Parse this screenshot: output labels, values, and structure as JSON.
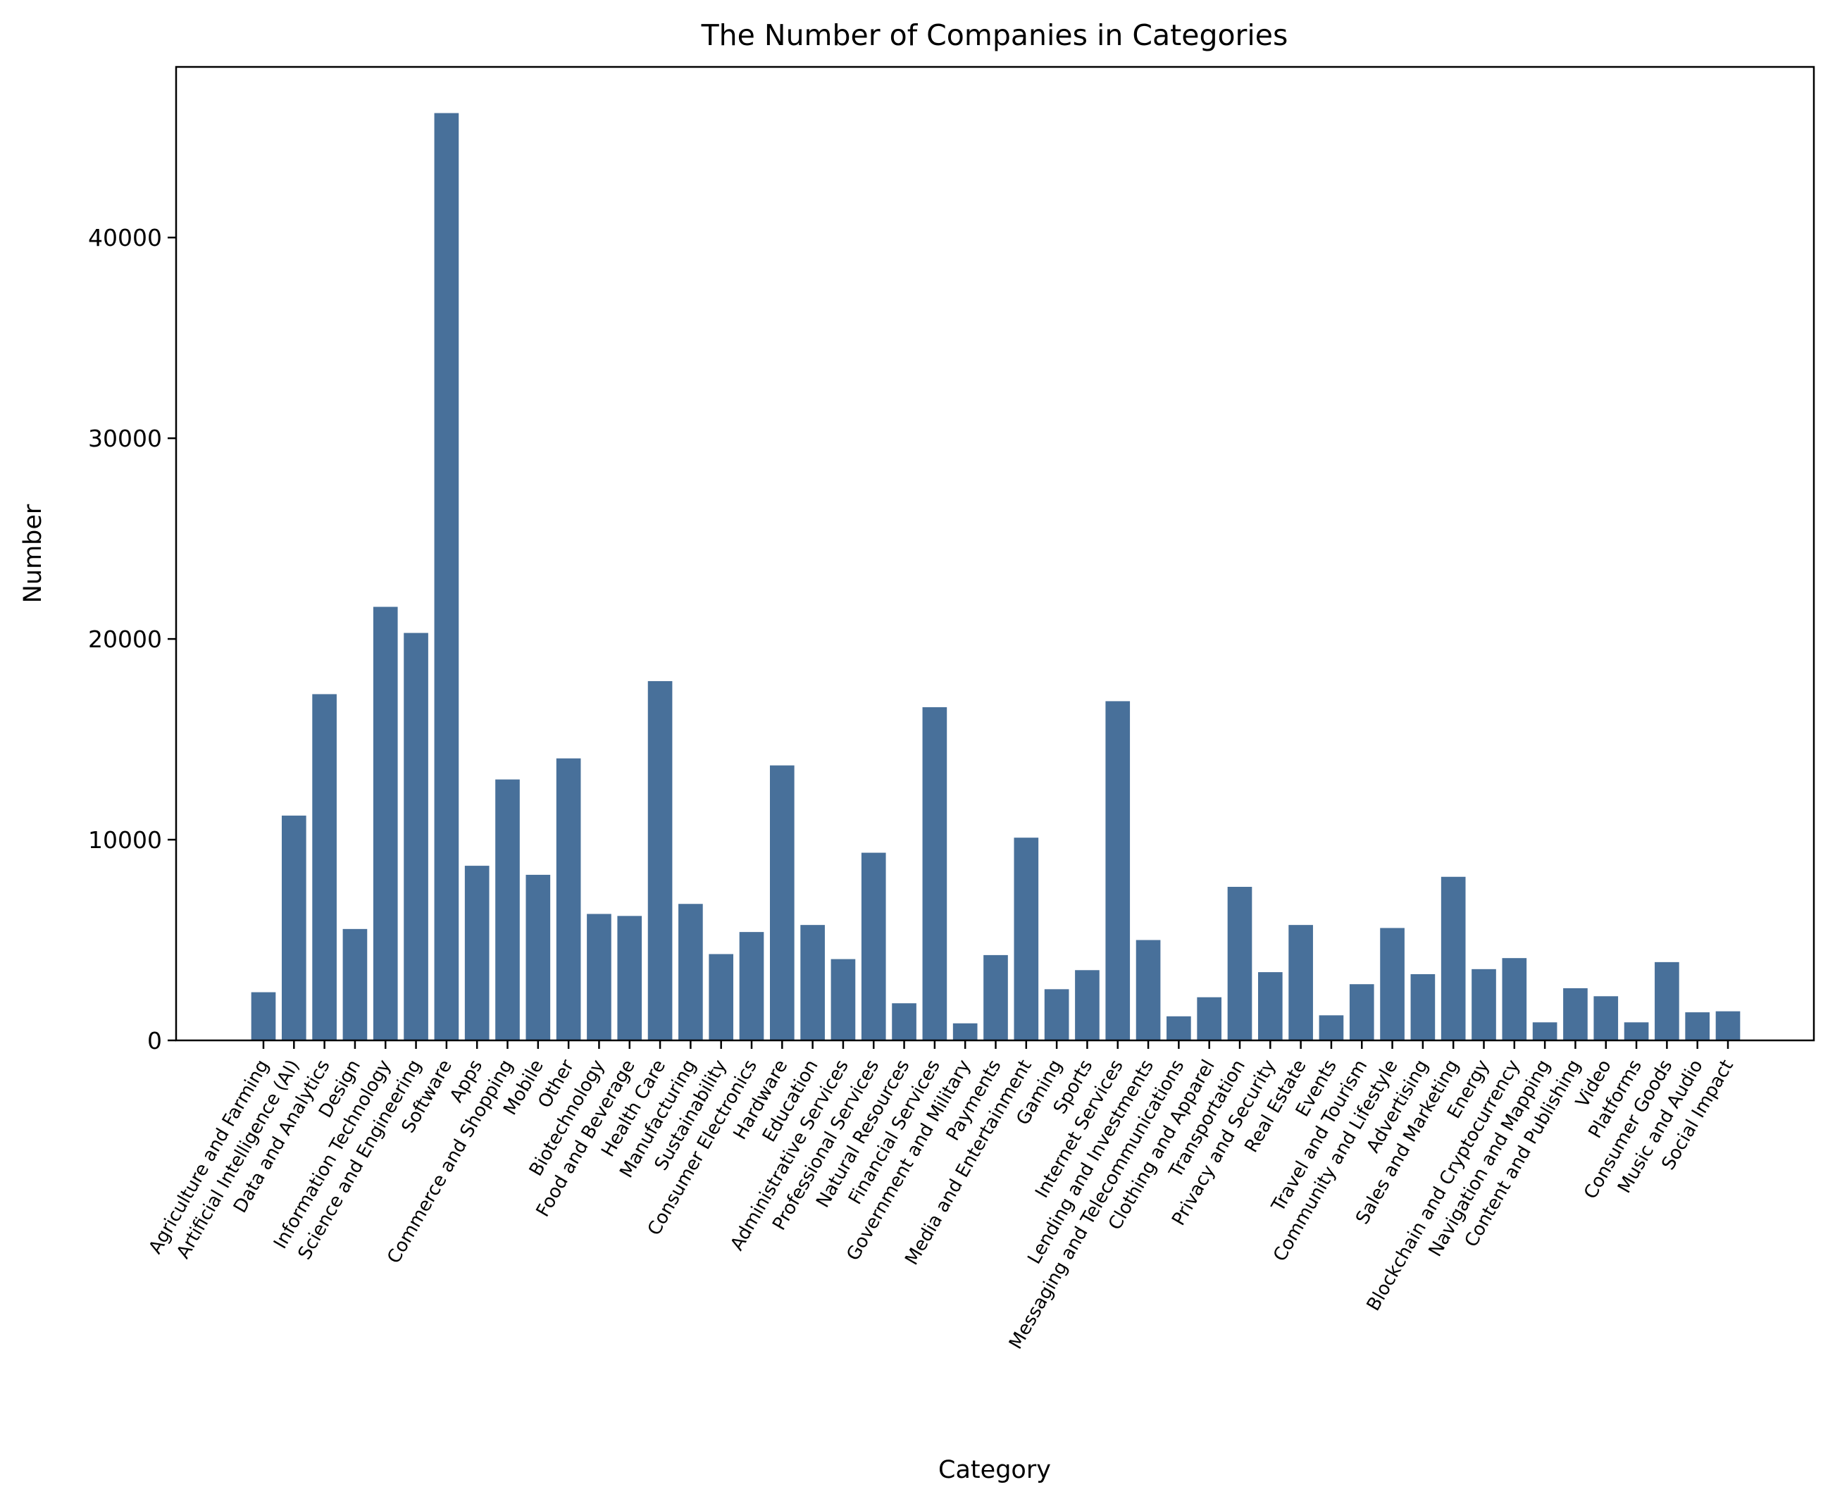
{
  "chart_data": {
    "type": "bar",
    "title": "The Number of Companies in Categories",
    "xlabel": "Category",
    "ylabel": "Number",
    "ylim": [
      0,
      48500
    ],
    "yticks": [
      0,
      10000,
      20000,
      30000,
      40000
    ],
    "grid": false,
    "legend": "none",
    "bar_color": "#48709a",
    "categories": [
      "Agriculture and Farming",
      "Artificial Intelligence (AI)",
      "Data and Analytics",
      "Design",
      "Information Technology",
      "Science and Engineering",
      "Software",
      "Apps",
      "Commerce and Shopping",
      "Mobile",
      "Other",
      "Biotechnology",
      "Food and Beverage",
      "Health Care",
      "Manufacturing",
      "Sustainability",
      "Consumer Electronics",
      "Hardware",
      "Education",
      "Administrative Services",
      "Professional Services",
      "Natural Resources",
      "Financial Services",
      "Government and Military",
      "Payments",
      "Media and Entertainment",
      "Gaming",
      "Sports",
      "Internet Services",
      "Lending and Investments",
      "Messaging and Telecommunications",
      "Clothing and Apparel",
      "Transportation",
      "Privacy and Security",
      "Real Estate",
      "Events",
      "Travel and Tourism",
      "Community and Lifestyle",
      "Advertising",
      "Sales and Marketing",
      "Energy",
      "Blockchain and Cryptocurrency",
      "Navigation and Mapping",
      "Content and Publishing",
      "Video",
      "Platforms",
      "Consumer Goods",
      "Music and Audio",
      "Social Impact"
    ],
    "values": [
      2400,
      11200,
      17250,
      5550,
      21600,
      20300,
      46200,
      8700,
      13000,
      8250,
      14050,
      6300,
      6200,
      17900,
      6800,
      4300,
      5400,
      13700,
      5750,
      4050,
      9350,
      1850,
      16600,
      850,
      4250,
      10100,
      2550,
      3500,
      16900,
      5000,
      1200,
      2150,
      7650,
      3400,
      5750,
      1250,
      2800,
      5600,
      3300,
      8150,
      3550,
      4100,
      900,
      2600,
      2200,
      900,
      3900,
      1400,
      1450
    ]
  }
}
